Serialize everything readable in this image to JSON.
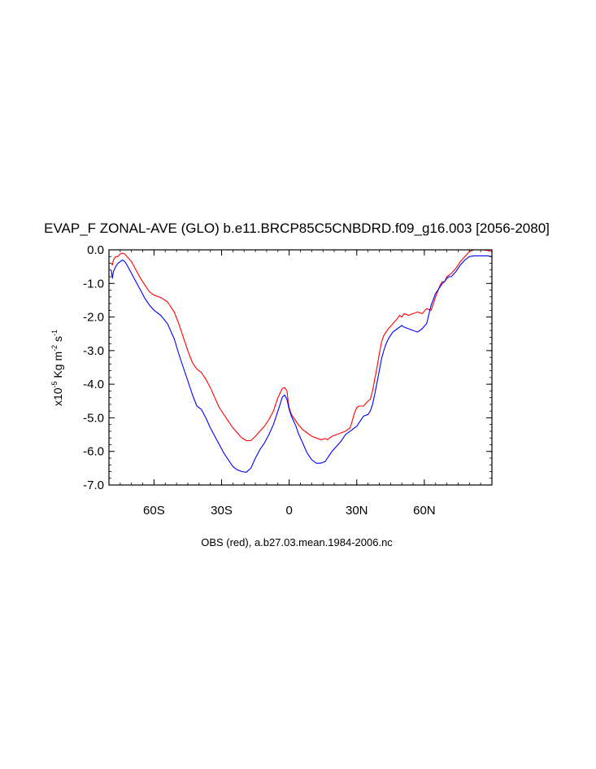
{
  "chart_data": {
    "type": "line",
    "title": "EVAP_F ZONAL-AVE (GLO) b.e11.BRCP85C5CNBDRD.f09_g16.003 [2056-2080]",
    "ylabel": {
      "prefix": "x10",
      "exp": "-5",
      "unit_kg": " Kg m",
      "exp_m": "-2",
      "unit_s": " s",
      "exp_s": "-1"
    },
    "caption": "OBS (red), a.b27.03.mean.1984-2006.nc",
    "xlim": [
      -80,
      90
    ],
    "ylim": [
      -7.0,
      0.0
    ],
    "x_ticks": [
      {
        "value": -60,
        "label": "60S"
      },
      {
        "value": -30,
        "label": "30S"
      },
      {
        "value": 0,
        "label": "0"
      },
      {
        "value": 30,
        "label": "30N"
      },
      {
        "value": 60,
        "label": "60N"
      }
    ],
    "y_ticks": [
      {
        "value": 0,
        "label": "0.0"
      },
      {
        "value": -1,
        "label": "-1.0"
      },
      {
        "value": -2,
        "label": "-2.0"
      },
      {
        "value": -3,
        "label": "-3.0"
      },
      {
        "value": -4,
        "label": "-4.0"
      },
      {
        "value": -5,
        "label": "-5.0"
      },
      {
        "value": -6,
        "label": "-6.0"
      },
      {
        "value": -7,
        "label": "-7.0"
      }
    ],
    "series": [
      {
        "color": "#ff0000",
        "x": [
          -79,
          -78.5,
          -78,
          -77,
          -76,
          -75,
          -74,
          -73,
          -72,
          -70,
          -68,
          -66,
          -64,
          -62,
          -60,
          -57,
          -54,
          -51,
          -49,
          -47,
          -45,
          -43,
          -41,
          -39,
          -37,
          -35,
          -33,
          -31,
          -29,
          -27,
          -25,
          -23,
          -21,
          -19,
          -17,
          -15,
          -13,
          -11,
          -9,
          -7,
          -5,
          -3,
          -2,
          -1,
          -0.5,
          0,
          0.5,
          1,
          2,
          3,
          4,
          6,
          8,
          10,
          12,
          14,
          16,
          17,
          19,
          21,
          23,
          25,
          27,
          28,
          29,
          30,
          31,
          33,
          35,
          36,
          37,
          38,
          39,
          40,
          41,
          42,
          43,
          44,
          46,
          48,
          49,
          50,
          51,
          53,
          55,
          57,
          59,
          61,
          63,
          65,
          67,
          68,
          69,
          70,
          71,
          72,
          74,
          76,
          78,
          80,
          82,
          84,
          86,
          88,
          90
        ],
        "y": [
          -0.4,
          -0.45,
          -0.3,
          -0.2,
          -0.2,
          -0.12,
          -0.1,
          -0.12,
          -0.2,
          -0.35,
          -0.6,
          -0.85,
          -1.05,
          -1.25,
          -1.35,
          -1.42,
          -1.55,
          -1.85,
          -2.2,
          -2.6,
          -3.0,
          -3.35,
          -3.55,
          -3.65,
          -3.85,
          -4.1,
          -4.4,
          -4.7,
          -4.9,
          -5.1,
          -5.3,
          -5.45,
          -5.6,
          -5.68,
          -5.68,
          -5.55,
          -5.4,
          -5.25,
          -5.05,
          -4.8,
          -4.4,
          -4.12,
          -4.1,
          -4.2,
          -4.5,
          -4.7,
          -4.8,
          -4.9,
          -5.0,
          -5.1,
          -5.2,
          -5.35,
          -5.45,
          -5.55,
          -5.6,
          -5.65,
          -5.62,
          -5.65,
          -5.55,
          -5.5,
          -5.45,
          -5.4,
          -5.3,
          -5.1,
          -4.85,
          -4.7,
          -4.65,
          -4.65,
          -4.5,
          -4.45,
          -4.2,
          -3.85,
          -3.5,
          -3.1,
          -2.75,
          -2.55,
          -2.45,
          -2.35,
          -2.2,
          -2.05,
          -1.95,
          -2.0,
          -1.9,
          -1.95,
          -1.9,
          -1.85,
          -1.9,
          -1.75,
          -1.8,
          -1.4,
          -1.05,
          -0.95,
          -0.95,
          -0.8,
          -0.75,
          -0.7,
          -0.55,
          -0.35,
          -0.2,
          -0.05,
          0.0,
          0.0,
          0.0,
          -0.02,
          -0.05
        ]
      },
      {
        "color": "#0000ff",
        "x": [
          -79,
          -78.5,
          -78,
          -77,
          -76,
          -75,
          -74,
          -73,
          -72,
          -70,
          -68,
          -66,
          -64,
          -62,
          -60,
          -57,
          -54,
          -51,
          -49,
          -47,
          -45,
          -43,
          -41,
          -39,
          -37,
          -35,
          -33,
          -31,
          -29,
          -27,
          -25,
          -23,
          -21,
          -19,
          -17,
          -15,
          -13,
          -11,
          -9,
          -7,
          -5,
          -3,
          -2,
          -1,
          -0.5,
          0,
          0.5,
          1,
          2,
          3,
          4,
          6,
          8,
          10,
          12,
          14,
          16,
          17,
          19,
          21,
          23,
          25,
          27,
          28,
          29,
          30,
          31,
          33,
          35,
          36,
          37,
          38,
          39,
          40,
          41,
          42,
          43,
          44,
          46,
          48,
          49,
          50,
          51,
          53,
          55,
          57,
          59,
          61,
          63,
          65,
          67,
          68,
          69,
          70,
          71,
          72,
          74,
          76,
          78,
          80,
          82,
          84,
          86,
          88,
          90
        ],
        "y": [
          -0.6,
          -0.85,
          -0.65,
          -0.5,
          -0.4,
          -0.35,
          -0.3,
          -0.35,
          -0.45,
          -0.7,
          -0.95,
          -1.2,
          -1.45,
          -1.65,
          -1.8,
          -1.95,
          -2.2,
          -2.65,
          -3.1,
          -3.5,
          -3.9,
          -4.3,
          -4.65,
          -4.75,
          -5.0,
          -5.3,
          -5.55,
          -5.8,
          -6.05,
          -6.25,
          -6.45,
          -6.55,
          -6.6,
          -6.62,
          -6.5,
          -6.2,
          -5.95,
          -5.75,
          -5.5,
          -5.2,
          -4.8,
          -4.38,
          -4.32,
          -4.45,
          -4.6,
          -4.75,
          -4.85,
          -4.95,
          -5.1,
          -5.25,
          -5.45,
          -5.75,
          -6.05,
          -6.25,
          -6.35,
          -6.35,
          -6.3,
          -6.2,
          -6.0,
          -5.85,
          -5.7,
          -5.5,
          -5.4,
          -5.35,
          -5.3,
          -5.25,
          -5.15,
          -4.95,
          -4.9,
          -4.8,
          -4.6,
          -4.3,
          -3.95,
          -3.6,
          -3.25,
          -3.0,
          -2.8,
          -2.65,
          -2.45,
          -2.35,
          -2.3,
          -2.25,
          -2.3,
          -2.35,
          -2.4,
          -2.45,
          -2.35,
          -2.2,
          -1.65,
          -1.3,
          -1.1,
          -1.0,
          -0.95,
          -0.85,
          -0.8,
          -0.8,
          -0.65,
          -0.45,
          -0.3,
          -0.2,
          -0.18,
          -0.18,
          -0.18,
          -0.18,
          -0.2
        ]
      }
    ]
  }
}
